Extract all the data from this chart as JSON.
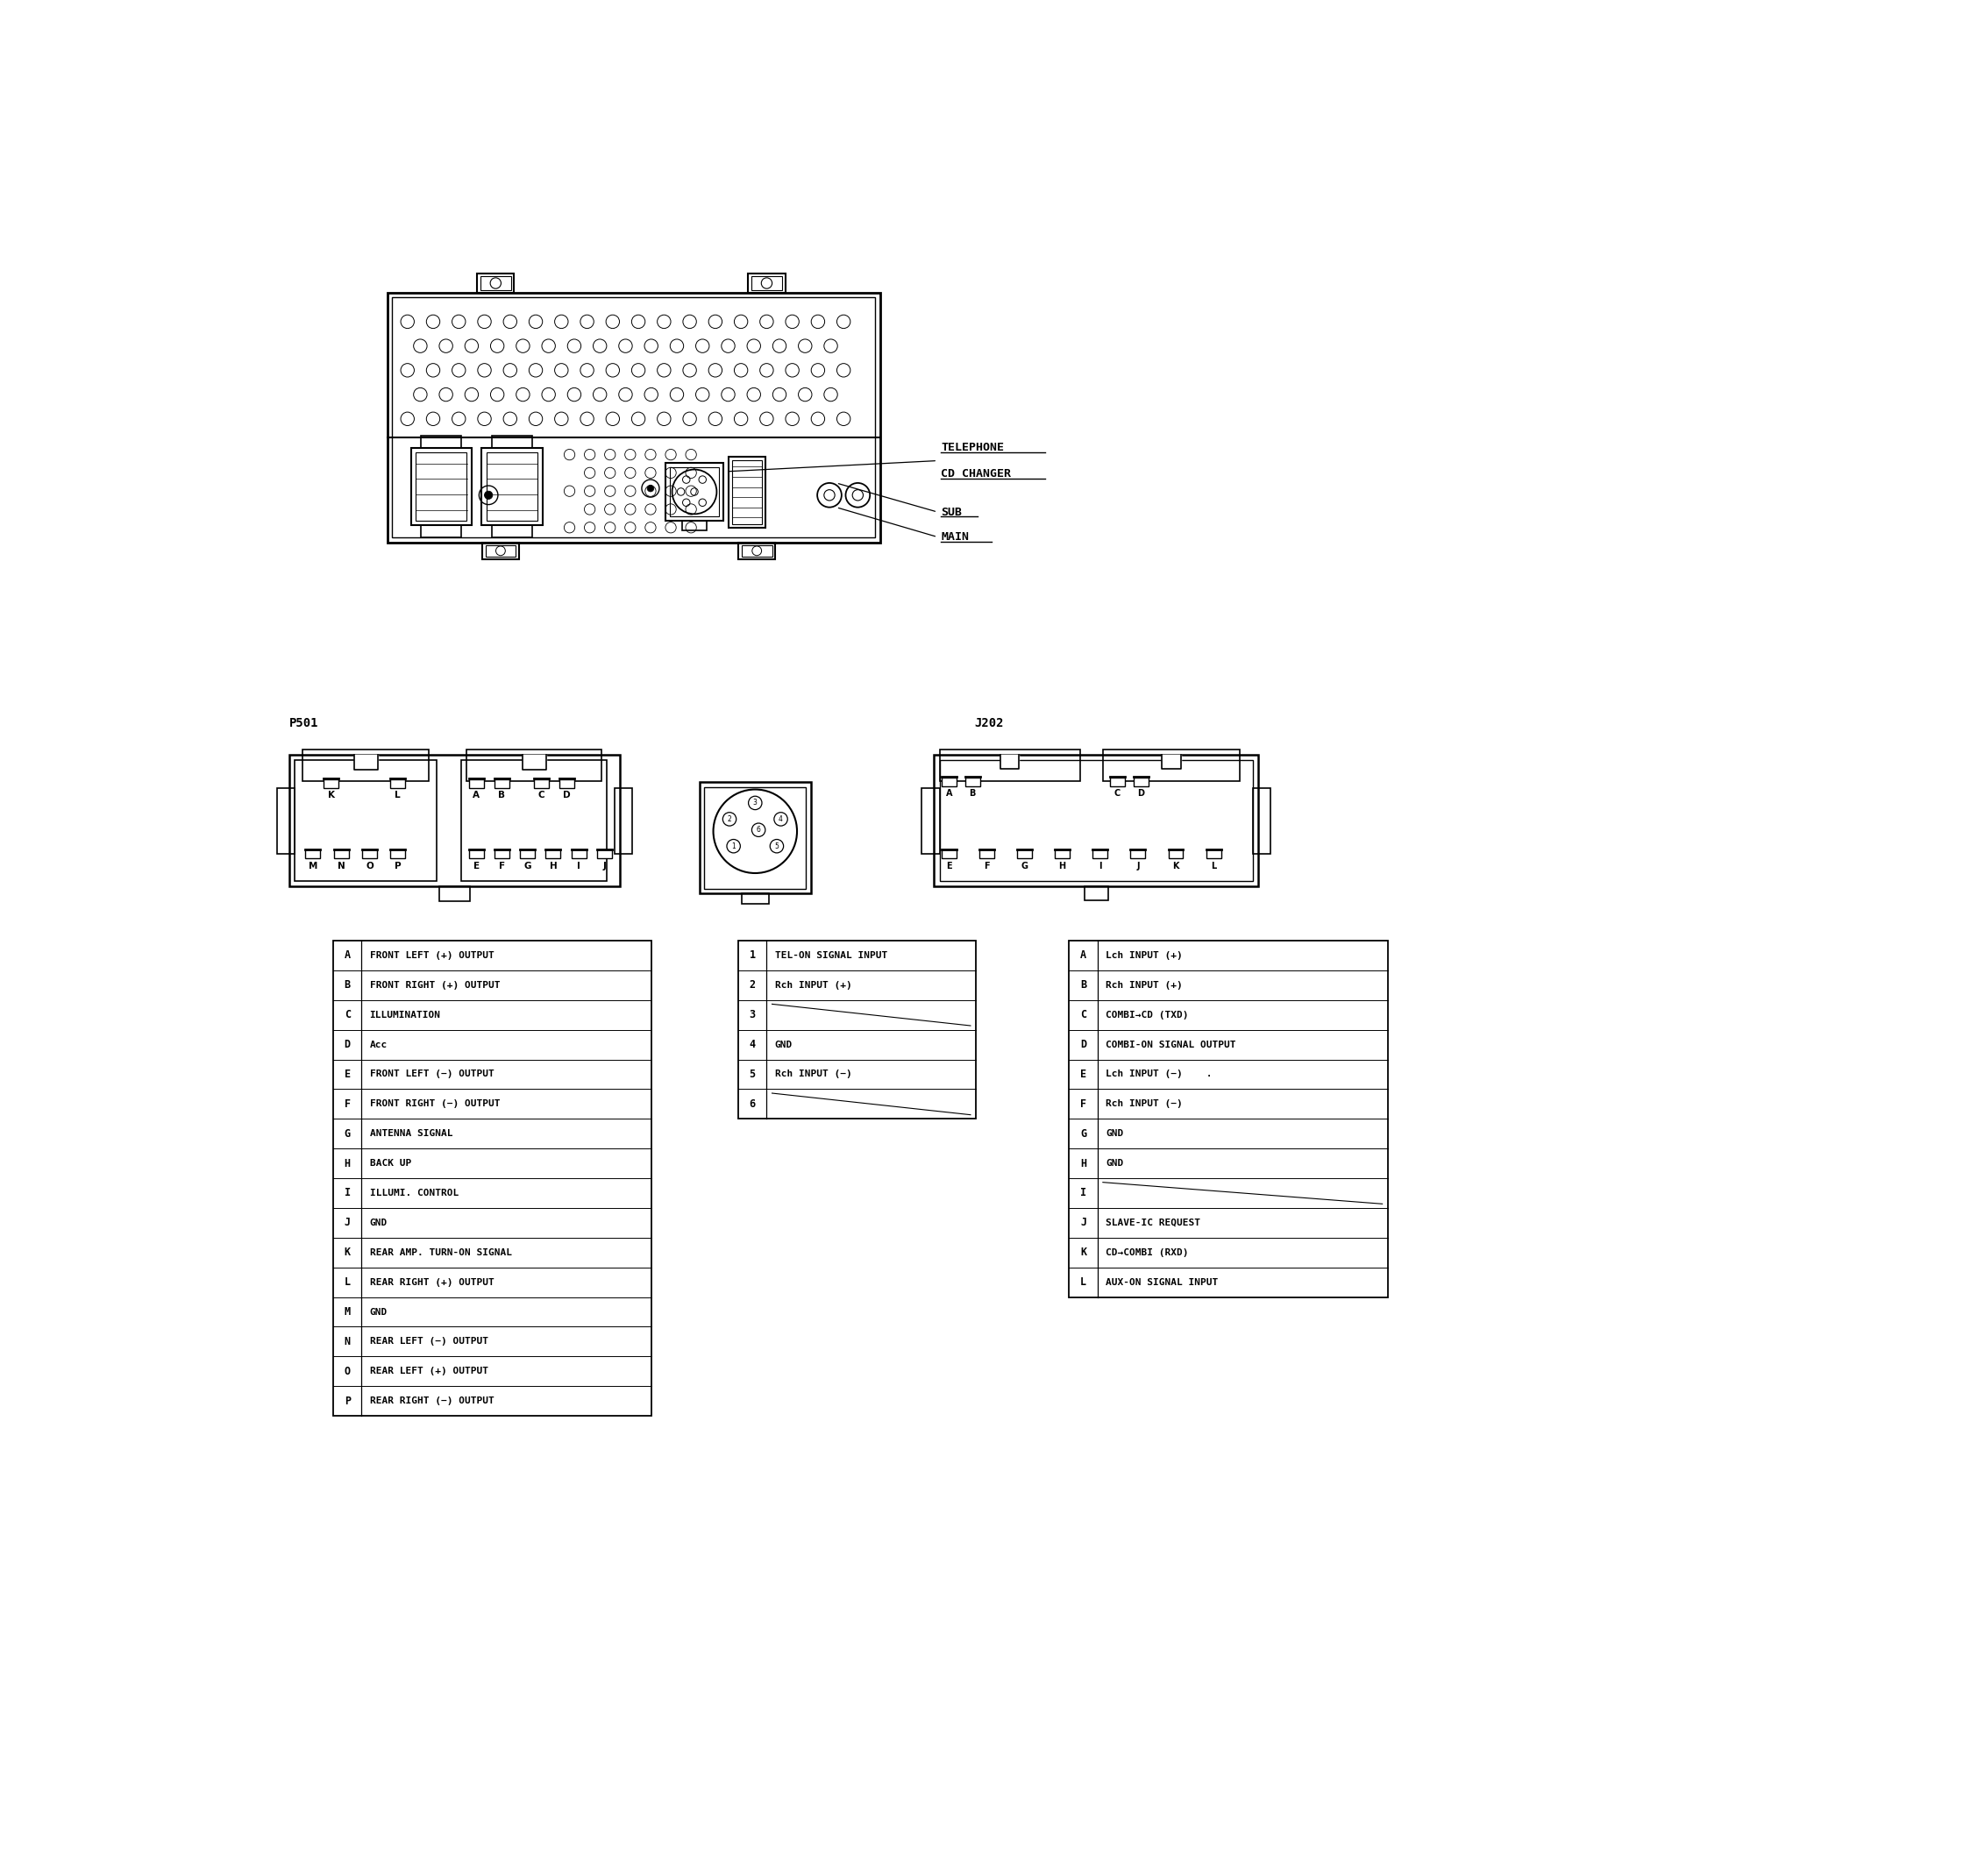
{
  "background_color": "#ffffff",
  "p501_label": "P501",
  "j202_label": "J202",
  "telephone_label": "TELEPHONE",
  "cd_changer_label": "CD CHANGER",
  "sub_label": "SUB",
  "main_label": "MAIN",
  "p501_rows": [
    [
      "A",
      "FRONT LEFT (+) OUTPUT"
    ],
    [
      "B",
      "FRONT RIGHT (+) OUTPUT"
    ],
    [
      "C",
      "ILLUMINATION"
    ],
    [
      "D",
      "Acc"
    ],
    [
      "E",
      "FRONT LEFT (−) OUTPUT"
    ],
    [
      "F",
      "FRONT RIGHT (−) OUTPUT"
    ],
    [
      "G",
      "ANTENNA SIGNAL"
    ],
    [
      "H",
      "BACK UP"
    ],
    [
      "I",
      "ILLUMI. CONTROL"
    ],
    [
      "J",
      "GND"
    ],
    [
      "K",
      "REAR AMP. TURN-ON SIGNAL"
    ],
    [
      "L",
      "REAR RIGHT (+) OUTPUT"
    ],
    [
      "M",
      "GND"
    ],
    [
      "N",
      "REAR LEFT (−) OUTPUT"
    ],
    [
      "O",
      "REAR LEFT (+) OUTPUT"
    ],
    [
      "P",
      "REAR RIGHT (−) OUTPUT"
    ]
  ],
  "cd_rows": [
    [
      "1",
      "TEL-ON SIGNAL INPUT"
    ],
    [
      "2",
      "Rch INPUT (+)"
    ],
    [
      "3",
      ""
    ],
    [
      "4",
      "GND"
    ],
    [
      "5",
      "Rch INPUT (−)"
    ],
    [
      "6",
      ""
    ]
  ],
  "j202_rows": [
    [
      "A",
      "Lch INPUT (+)"
    ],
    [
      "B",
      "Rch INPUT (+)"
    ],
    [
      "C",
      "COMBI→CD (TXD)"
    ],
    [
      "D",
      "COMBI-ON SIGNAL OUTPUT"
    ],
    [
      "E",
      "Lch INPUT (−)    ."
    ],
    [
      "F",
      "Rch INPUT (−)"
    ],
    [
      "G",
      "GND"
    ],
    [
      "H",
      "GND"
    ],
    [
      "I",
      ""
    ],
    [
      "J",
      "SLAVE-IC REQUEST"
    ],
    [
      "K",
      "CD→COMBI (RXD)"
    ],
    [
      "L",
      "AUX-ON SIGNAL INPUT"
    ]
  ]
}
